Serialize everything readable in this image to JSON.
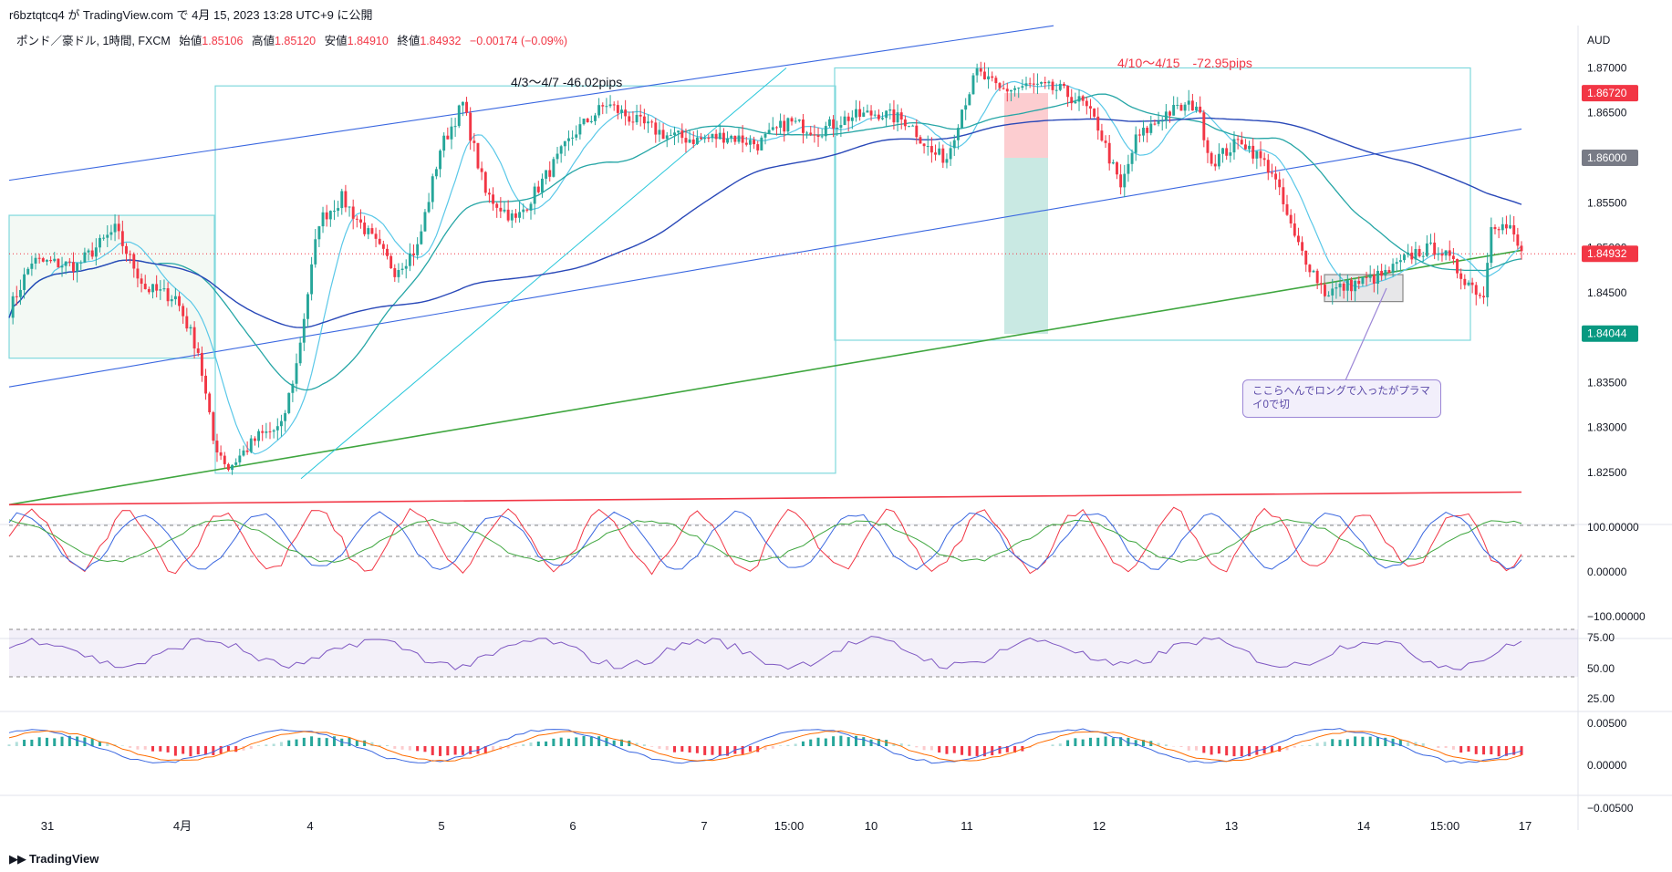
{
  "header": {
    "publish_line": "r6bztqtcq4 が TradingView.com で 4月 15, 2023 13:28 UTC+9 に公開"
  },
  "legend": {
    "symbol": "ポンド／豪ドル, 1時間, FXCM",
    "open_label": "始値",
    "open": "1.85106",
    "high_label": "高値",
    "high": "1.85120",
    "low_label": "安値",
    "low": "1.84910",
    "close_label": "終値",
    "close": "1.84932",
    "change": "−0.00174 (−0.09%)"
  },
  "footer": {
    "brand": "TradingView",
    "logo_icon": "tradingview-logo-icon"
  },
  "colors": {
    "up": "#26a69a",
    "down": "#f23645",
    "box": "#7fd8dd",
    "green_trend": "#3fa63f",
    "red_line": "#f23645",
    "blue_line": "#3a67e0"
  },
  "chart_data": {
    "type": "candlestick",
    "symbol": "GBPAUD",
    "price_axis": {
      "label": "AUD",
      "range": [
        1.8195,
        1.8735
      ],
      "ticks": [
        "1.87000",
        "1.86500",
        "1.86000",
        "1.85500",
        "1.85000",
        "1.84500",
        "1.84000",
        "1.83500",
        "1.83000",
        "1.82500"
      ],
      "tick_values": [
        1.87,
        1.865,
        1.86,
        1.855,
        1.85,
        1.845,
        1.84,
        1.835,
        1.83,
        1.825
      ]
    },
    "price_tags": [
      {
        "text": "1.86720",
        "value": 1.8672,
        "color": "#f23645"
      },
      {
        "text": "1.86000",
        "value": 1.86,
        "color": "#787b86"
      },
      {
        "text": "1.84932",
        "value": 1.84932,
        "color": "#f23645"
      },
      {
        "text": "1.84044",
        "value": 1.84044,
        "color": "#089981"
      }
    ],
    "time_axis": [
      "31",
      "4月",
      "4",
      "5",
      "6",
      "7",
      "15:00",
      "10",
      "11",
      "12",
      "13",
      "14",
      "15:00",
      "17"
    ],
    "annotations": [
      {
        "text": "4/3〜4/7 -46.02pips",
        "color": "#131722"
      },
      {
        "text": "4/10〜4/15　-72.95pips",
        "color": "#f23645"
      },
      {
        "text": "ここらへんでロングで入ったがプラマイ0で切"
      }
    ],
    "key_points": [
      [
        0,
        1.843
      ],
      [
        6,
        1.8485
      ],
      [
        18,
        1.848
      ],
      [
        28,
        1.852
      ],
      [
        36,
        1.8455
      ],
      [
        44,
        1.8445
      ],
      [
        50,
        1.8385
      ],
      [
        54,
        1.8285
      ],
      [
        58,
        1.8255
      ],
      [
        66,
        1.829
      ],
      [
        72,
        1.83
      ],
      [
        76,
        1.837
      ],
      [
        82,
        1.853
      ],
      [
        88,
        1.8555
      ],
      [
        95,
        1.8515
      ],
      [
        102,
        1.8475
      ],
      [
        108,
        1.85
      ],
      [
        114,
        1.861
      ],
      [
        120,
        1.866
      ],
      [
        126,
        1.856
      ],
      [
        134,
        1.853
      ],
      [
        142,
        1.858
      ],
      [
        150,
        1.863
      ],
      [
        158,
        1.866
      ],
      [
        166,
        1.864
      ],
      [
        174,
        1.8625
      ],
      [
        182,
        1.862
      ],
      [
        190,
        1.8625
      ],
      [
        198,
        1.8615
      ],
      [
        206,
        1.864
      ],
      [
        214,
        1.863
      ],
      [
        222,
        1.8645
      ],
      [
        230,
        1.865
      ],
      [
        238,
        1.864
      ],
      [
        244,
        1.8605
      ],
      [
        248,
        1.86
      ],
      [
        252,
        1.8655
      ],
      [
        256,
        1.8695
      ],
      [
        262,
        1.8675
      ],
      [
        270,
        1.868
      ],
      [
        278,
        1.8675
      ],
      [
        284,
        1.866
      ],
      [
        288,
        1.8635
      ],
      [
        294,
        1.8565
      ],
      [
        298,
        1.862
      ],
      [
        306,
        1.865
      ],
      [
        314,
        1.866
      ],
      [
        318,
        1.8595
      ],
      [
        326,
        1.862
      ],
      [
        334,
        1.8585
      ],
      [
        340,
        1.851
      ],
      [
        348,
        1.845
      ],
      [
        356,
        1.846
      ],
      [
        364,
        1.847
      ],
      [
        372,
        1.8495
      ],
      [
        378,
        1.85
      ],
      [
        384,
        1.847
      ],
      [
        390,
        1.8445
      ],
      [
        392,
        1.853
      ],
      [
        397,
        1.852
      ],
      [
        400,
        1.8493
      ]
    ],
    "overlays": [
      "ma_fast",
      "ma_medium",
      "ma_slow"
    ],
    "stochastic": {
      "axis": [
        "100.00000",
        "0.00000",
        "−100.00000"
      ],
      "levels": [
        80,
        -80
      ]
    },
    "rsi": {
      "axis": [
        "75.00",
        "50.00",
        "25.00"
      ],
      "levels": [
        70,
        30
      ]
    },
    "macd": {
      "axis": [
        "0.00500",
        "0.00000",
        "−0.00500"
      ]
    }
  }
}
